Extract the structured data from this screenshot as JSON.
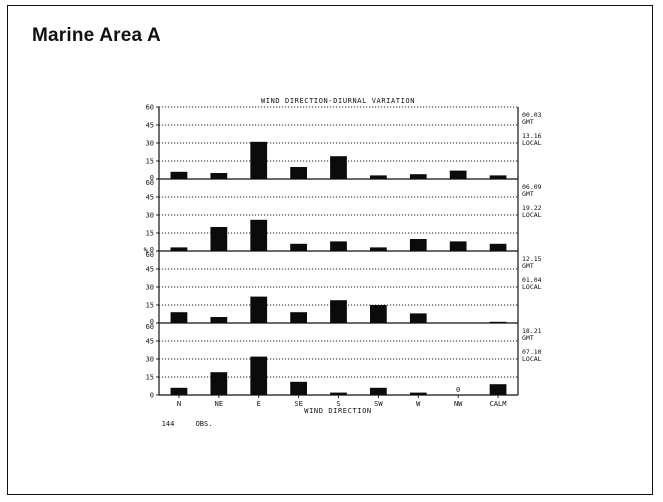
{
  "page": {
    "heading": "Marine Area A"
  },
  "chart_data": {
    "type": "bar",
    "title": "WIND DIRECTION-DIURNAL VARIATION",
    "xlabel": "WIND DIRECTION",
    "ylabel": "%",
    "ylim": [
      0,
      60
    ],
    "yticks": [
      "60",
      "45",
      "30",
      "15",
      "0"
    ],
    "categories": [
      "N",
      "NE",
      "E",
      "SE",
      "S",
      "SW",
      "W",
      "NW",
      "CALM"
    ],
    "footnote_count": "144",
    "footnote_label": "OBS.",
    "grid": "dotted horizontal",
    "panels": [
      {
        "name": "panel-1",
        "time_gmt": "00.03",
        "gmt_label": "GMT",
        "time_local": "13.16",
        "local_label": "LOCAL",
        "values": [
          6,
          5,
          31,
          10,
          19,
          3,
          4,
          7,
          3
        ],
        "value_labels": []
      },
      {
        "name": "panel-2",
        "time_gmt": "06.09",
        "gmt_label": "GMT",
        "time_local": "19.22",
        "local_label": "LOCAL",
        "values": [
          3,
          20,
          26,
          6,
          8,
          3,
          10,
          8,
          6
        ],
        "value_labels": []
      },
      {
        "name": "panel-3",
        "time_gmt": "12.15",
        "gmt_label": "GMT",
        "time_local": "01.04",
        "local_label": "LOCAL",
        "values": [
          9,
          5,
          22,
          9,
          19,
          15,
          8,
          0,
          1
        ],
        "value_labels": []
      },
      {
        "name": "panel-4",
        "time_gmt": "18.21",
        "gmt_label": "GMT",
        "time_local": "07.10",
        "local_label": "LOCAL",
        "values": [
          6,
          19,
          32,
          11,
          2,
          6,
          2,
          0,
          9
        ],
        "value_labels": [
          {
            "index": 7,
            "text": "0"
          }
        ]
      }
    ]
  }
}
